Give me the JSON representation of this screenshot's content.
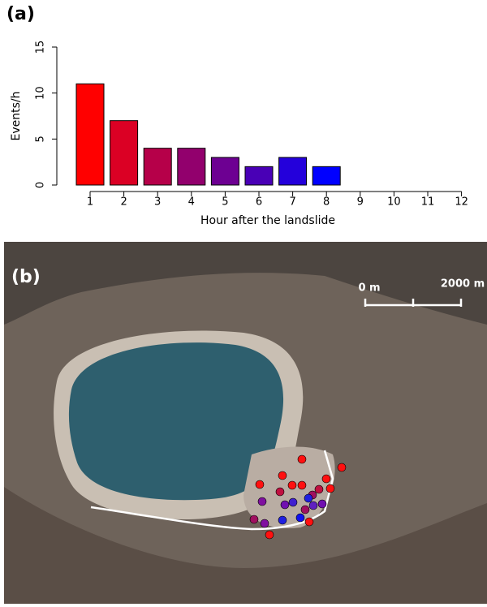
{
  "panel_labels": [
    "(a)",
    "(b)"
  ],
  "chart_data": {
    "type": "bar",
    "x_label": "Hour after the landslide",
    "y_label": "Events/h",
    "categories": [
      "1",
      "2",
      "3",
      "4",
      "5",
      "6",
      "7",
      "8",
      "9",
      "10",
      "11",
      "12"
    ],
    "values": [
      11,
      7,
      4,
      4,
      3,
      2,
      3,
      2,
      0,
      0,
      0,
      0
    ],
    "colors": [
      "#ff0000",
      "#db0024",
      "#b60049",
      "#92006d",
      "#6d0092",
      "#4900b6",
      "#2400db",
      "#0000ff",
      "#0000ff",
      "#0000ff",
      "#0000ff",
      "#0000ff"
    ],
    "ylim": [
      0,
      15
    ],
    "yticks": [
      0,
      5,
      10,
      15
    ]
  },
  "map": {
    "scale_labels": [
      "0 m",
      "2000 m"
    ]
  }
}
